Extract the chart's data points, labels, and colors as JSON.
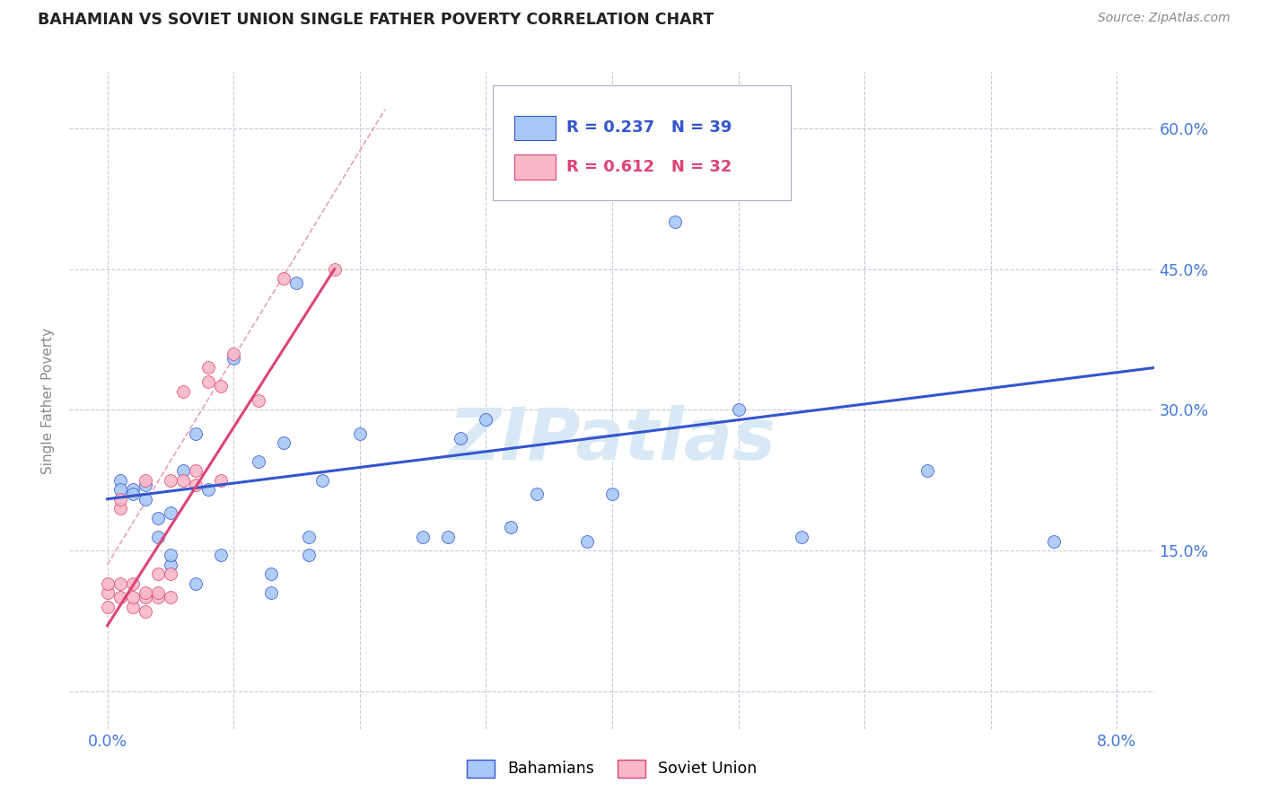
{
  "title": "BAHAMIAN VS SOVIET UNION SINGLE FATHER POVERTY CORRELATION CHART",
  "source": "Source: ZipAtlas.com",
  "ylabel_label": "Single Father Poverty",
  "x_ticks": [
    0.0,
    0.01,
    0.02,
    0.03,
    0.04,
    0.05,
    0.06,
    0.07,
    0.08
  ],
  "x_tick_labels": [
    "0.0%",
    "",
    "",
    "",
    "",
    "",
    "",
    "",
    "8.0%"
  ],
  "y_ticks": [
    0.0,
    0.15,
    0.3,
    0.45,
    0.6
  ],
  "y_tick_labels": [
    "",
    "15.0%",
    "30.0%",
    "45.0%",
    "60.0%"
  ],
  "xlim": [
    -0.003,
    0.083
  ],
  "ylim": [
    -0.04,
    0.66
  ],
  "bahamian_color": "#a8c8f8",
  "soviet_color": "#f8b8c8",
  "trendline_bahamian_color": "#3355cc",
  "trendline_soviet_color": "#dd4477",
  "trendline_dashed_color": "#e8a0b8",
  "legend_r_bahamian": "R = 0.237",
  "legend_n_bahamian": "N = 39",
  "legend_r_soviet": "R = 0.612",
  "legend_n_soviet": "N = 32",
  "watermark": "ZIPatlas",
  "watermark_color": "#d8e8f4",
  "grid_color": "#c8c8d8",
  "background_color": "#ffffff",
  "title_color": "#222222",
  "source_color": "#888888",
  "axis_tick_color": "#4477dd",
  "ylabel_color": "#888888",
  "bahamian_x": [
    0.001,
    0.001,
    0.002,
    0.002,
    0.003,
    0.003,
    0.004,
    0.004,
    0.005,
    0.005,
    0.005,
    0.006,
    0.007,
    0.007,
    0.008,
    0.009,
    0.01,
    0.012,
    0.013,
    0.013,
    0.014,
    0.015,
    0.016,
    0.016,
    0.017,
    0.02,
    0.025,
    0.027,
    0.028,
    0.03,
    0.032,
    0.034,
    0.038,
    0.04,
    0.045,
    0.05,
    0.055,
    0.065,
    0.075
  ],
  "bahamian_y": [
    0.225,
    0.215,
    0.215,
    0.21,
    0.205,
    0.22,
    0.165,
    0.185,
    0.135,
    0.145,
    0.19,
    0.235,
    0.115,
    0.275,
    0.215,
    0.145,
    0.355,
    0.245,
    0.105,
    0.125,
    0.265,
    0.435,
    0.145,
    0.165,
    0.225,
    0.275,
    0.165,
    0.165,
    0.27,
    0.29,
    0.175,
    0.21,
    0.16,
    0.21,
    0.5,
    0.3,
    0.165,
    0.235,
    0.16
  ],
  "soviet_x": [
    0.0,
    0.0,
    0.0,
    0.001,
    0.001,
    0.001,
    0.001,
    0.002,
    0.002,
    0.002,
    0.003,
    0.003,
    0.003,
    0.003,
    0.004,
    0.004,
    0.004,
    0.005,
    0.005,
    0.005,
    0.006,
    0.006,
    0.007,
    0.007,
    0.008,
    0.008,
    0.009,
    0.009,
    0.01,
    0.012,
    0.014,
    0.018
  ],
  "soviet_y": [
    0.09,
    0.105,
    0.115,
    0.1,
    0.115,
    0.195,
    0.205,
    0.09,
    0.1,
    0.115,
    0.085,
    0.1,
    0.105,
    0.225,
    0.1,
    0.105,
    0.125,
    0.1,
    0.125,
    0.225,
    0.225,
    0.32,
    0.22,
    0.235,
    0.33,
    0.345,
    0.225,
    0.325,
    0.36,
    0.31,
    0.44,
    0.45
  ],
  "bahamian_trendline_x": [
    0.0,
    0.083
  ],
  "bahamian_trendline_y": [
    0.205,
    0.345
  ],
  "soviet_trendline_x": [
    0.0,
    0.018
  ],
  "soviet_trendline_y": [
    0.07,
    0.45
  ],
  "dashed_trendline_x": [
    0.0,
    0.022
  ],
  "dashed_trendline_y": [
    0.135,
    0.62
  ]
}
